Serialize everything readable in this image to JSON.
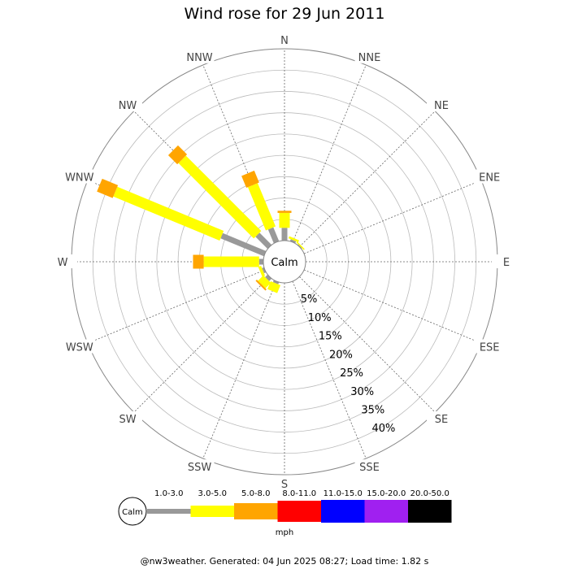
{
  "chart_data": {
    "type": "wind-rose",
    "title": "Wind rose for 29 Jun 2011",
    "directions": [
      "N",
      "NNE",
      "NE",
      "ENE",
      "E",
      "ESE",
      "SE",
      "SSE",
      "S",
      "SSW",
      "SW",
      "WSW",
      "W",
      "WNW",
      "NW",
      "NNW"
    ],
    "ring_labels": [
      "5%",
      "10%",
      "15%",
      "20%",
      "25%",
      "30%",
      "35%",
      "40%"
    ],
    "ring_values": [
      5,
      10,
      15,
      20,
      25,
      30,
      35,
      40
    ],
    "radial_max_percent": 45,
    "calm_label": "Calm",
    "speed_unit": "mph",
    "speed_bins": [
      {
        "label": "1.0-3.0",
        "color": "#999999"
      },
      {
        "label": "3.0-5.0",
        "color": "#ffff00"
      },
      {
        "label": "5.0-8.0",
        "color": "#ffa500"
      },
      {
        "label": "8.0-11.0",
        "color": "#ff0000"
      },
      {
        "label": "11.0-15.0",
        "color": "#0000ff"
      },
      {
        "label": "15.0-20.0",
        "color": "#a020f0"
      },
      {
        "label": "20.0-50.0",
        "color": "#000000"
      }
    ],
    "cumulative_percent_by_direction": [
      {
        "direction": "N",
        "values": [
          3.0,
          6.5,
          7.0
        ]
      },
      {
        "direction": "NNE",
        "values": [
          0.5,
          1.0,
          1.0
        ]
      },
      {
        "direction": "NE",
        "values": [
          0.2,
          0.5,
          0.5
        ]
      },
      {
        "direction": "SSW",
        "values": [
          0.5,
          2.5,
          2.5
        ]
      },
      {
        "direction": "SW",
        "values": [
          0.8,
          2.6,
          3.0
        ]
      },
      {
        "direction": "WSW",
        "values": [
          0.5,
          1.2,
          1.2
        ]
      },
      {
        "direction": "W",
        "values": [
          1.0,
          14.0,
          16.5
        ]
      },
      {
        "direction": "WNW",
        "values": [
          11.0,
          38.0,
          42.0
        ]
      },
      {
        "direction": "NW",
        "values": [
          4.0,
          29.0,
          32.0
        ]
      },
      {
        "direction": "NNW",
        "values": [
          3.5,
          14.5,
          17.5
        ]
      }
    ]
  },
  "footer": "@nw3weather. Generated: 04 Jun 2025 08:27; Load time: 1.82 s"
}
